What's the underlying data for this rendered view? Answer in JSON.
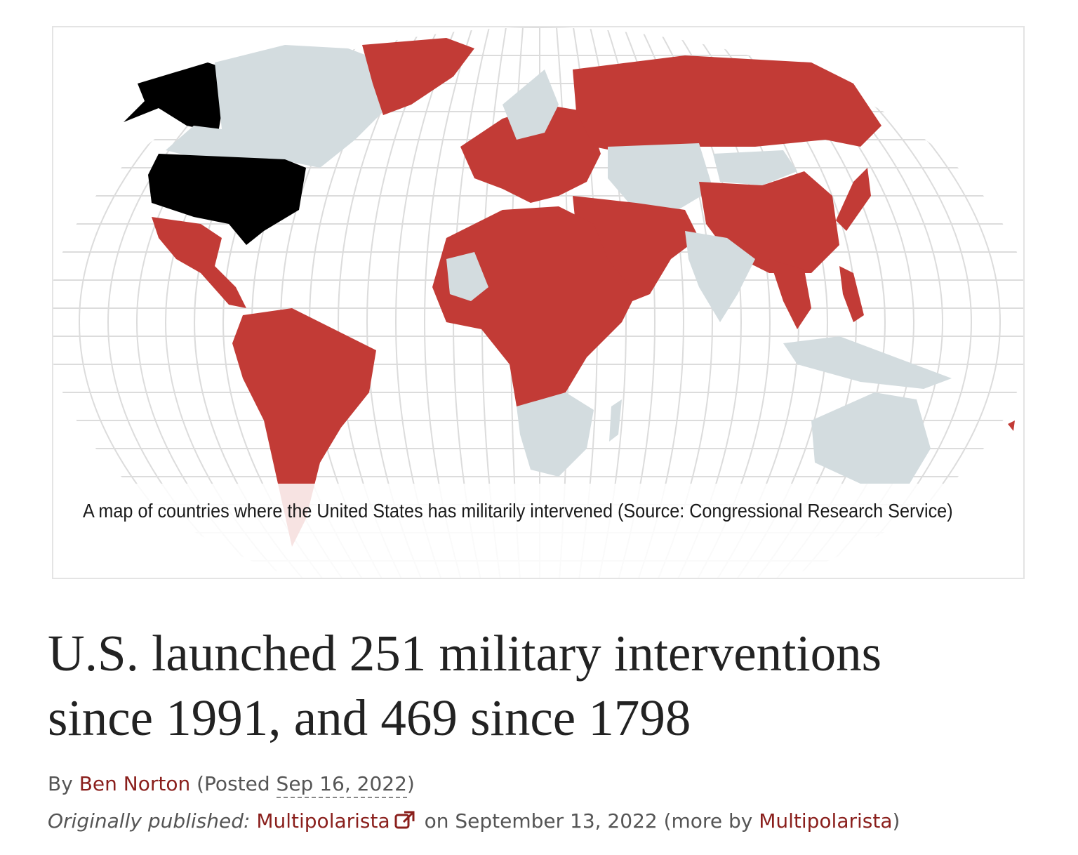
{
  "figure": {
    "caption": "A map of countries where the United States has militarily intervened (Source: Congressional Research Service)",
    "colors": {
      "intervened": "#c23b36",
      "united_states": "#000000",
      "other": "#d3dcdf",
      "grid": "#dddddd"
    }
  },
  "article": {
    "title_line1": "U.S. launched 251 military interventions",
    "title_line2": "since 1991, and 469 since 1798",
    "by_prefix": "By",
    "author": "Ben Norton",
    "posted_prefix": "(Posted",
    "posted_date": "Sep 16, 2022",
    "posted_suffix": ")",
    "originally_label": "Originally published:",
    "source_name": "Multipolarista",
    "source_icon": "external-link-icon",
    "published_on": "on September 13, 2022 (more by",
    "more_by": "Multipolarista",
    "more_suffix": ")"
  }
}
